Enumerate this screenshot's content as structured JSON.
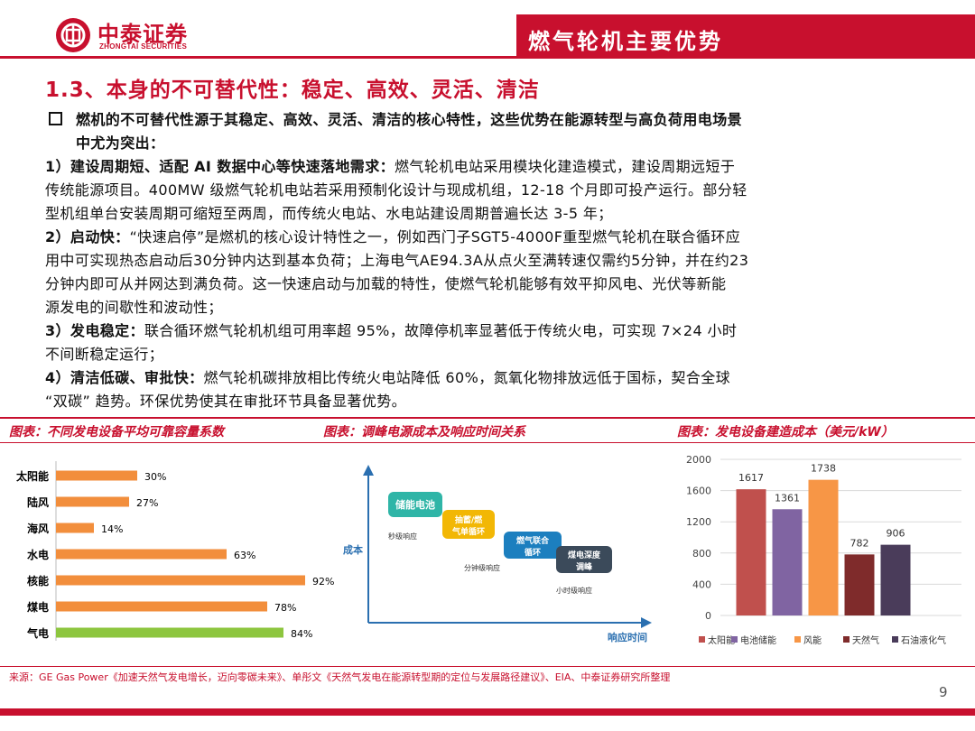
{
  "header": {
    "logo_cn": "中泰证券",
    "logo_en": "ZHONGTAI SECURITIES",
    "banner": "燃气轮机主要优势"
  },
  "section_title": "1.3、本身的不可替代性：稳定、高效、灵活、清洁",
  "body": {
    "intro_1": "燃机的不可替代性源于其稳定、高效、灵活、清洁的核心特性，这些优势在能源转型与高负荷用电场景",
    "intro_2": "中尤为突出：",
    "p1_head": "1）建设周期短、适配 AI 数据中心等快速落地需求：",
    "p1_l1": "燃气轮机电站采用模块化建造模式，建设周期远短于",
    "p1_l2": "传统能源项目。400MW 级燃气轮机电站若采用预制化设计与现成机组，12-18 个月即可投产运行。部分轻",
    "p1_l3": "型机组单台安装周期可缩短至两周，而传统火电站、水电站建设周期普遍长达 3-5 年；",
    "p2_head": "2）启动快：",
    "p2_l1": "“快速启停”是燃机的核心设计特性之一，例如西门子SGT5-4000F重型燃气轮机在联合循环应",
    "p2_l2": "用中可实现热态启动后30分钟内达到基本负荷；上海电气AE94.3A从点火至满转速仅需约5分钟，并在约23",
    "p2_l3": "分钟内即可从并网达到满负荷。这一快速启动与加载的特性，使燃气轮机能够有效平抑风电、光伏等新能",
    "p2_l4": "源发电的间歇性和波动性；",
    "p3_head": "3）发电稳定：",
    "p3_l1": "联合循环燃气轮机机组可用率超 95%，故障停机率显著低于传统火电，可实现 7×24 小时",
    "p3_l2": "不间断稳定运行；",
    "p4_head": "4）清洁低碳、审批快：",
    "p4_l1": "燃气轮机碳排放相比传统火电站降低 60%，氮氧化物排放远低于国标，契合全球",
    "p4_l2": "“双碳” 趋势。环保优势使其在审批环节具备显著优势。"
  },
  "captions": {
    "c1": "图表：不同发电设备平均可靠容量系数",
    "c2": "图表：调峰电源成本及响应时间关系",
    "c3": "图表：发电设备建造成本（美元/kW）"
  },
  "chart_data": [
    {
      "type": "bar",
      "orientation": "horizontal",
      "categories": [
        "太阳能",
        "陆风",
        "海风",
        "水电",
        "核能",
        "煤电",
        "气电"
      ],
      "values": [
        30,
        27,
        14,
        63,
        92,
        78,
        84
      ],
      "value_labels": [
        "30%",
        "27%",
        "14%",
        "63%",
        "92%",
        "78%",
        "84%"
      ],
      "colors": [
        "#f28e3c",
        "#f28e3c",
        "#f28e3c",
        "#f28e3c",
        "#f28e3c",
        "#f28e3c",
        "#8dc63f"
      ],
      "xlim": [
        0,
        100
      ],
      "grid": false
    },
    {
      "type": "diagram",
      "ylabel": "成本",
      "xlabel": "响应时间",
      "nodes": [
        {
          "label": "储能电池",
          "sub": "秒级响应",
          "color": "#2fb5a7"
        },
        {
          "label": "抽蓄/燃气单循环",
          "sub": "",
          "color": "#f2b705"
        },
        {
          "label": "燃气联合循环",
          "sub": "分钟级响应",
          "color": "#1c7fbf"
        },
        {
          "label": "煤电深度调峰",
          "sub": "小时级响应",
          "color": "#3b4a5a"
        }
      ]
    },
    {
      "type": "bar",
      "categories": [
        "太阳能",
        "电池储能",
        "风能",
        "天然气",
        "石油液化气"
      ],
      "values": [
        1617,
        1361,
        1738,
        782,
        906
      ],
      "colors": [
        "#c0504d",
        "#8064a2",
        "#f79646",
        "#7f2b2b",
        "#4a3c5a"
      ],
      "ylim": [
        0,
        2000
      ],
      "yticks": [
        0,
        400,
        800,
        1200,
        1600,
        2000
      ],
      "grid": true,
      "legend": "bottom"
    }
  ],
  "footer": {
    "source": "来源：GE Gas Power《加速天然气发电增长，迈向零碳未来》、单彤文《天然气发电在能源转型期的定位与发展路径建议》、EIA、中泰证券研究所整理",
    "page": "9"
  }
}
